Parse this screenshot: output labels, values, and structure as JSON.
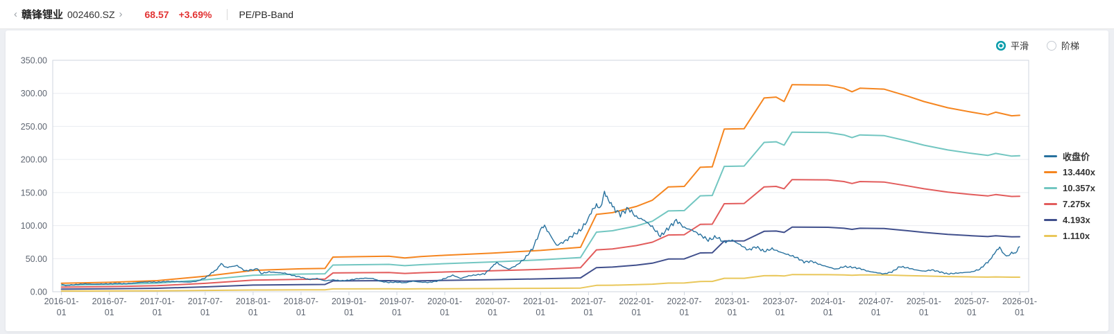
{
  "header": {
    "back_chevron": "‹",
    "stock_name": "赣锋锂业",
    "stock_code": "002460.SZ",
    "forward_chevron": "›",
    "price": "68.57",
    "change_pct": "+3.69%",
    "page_title": "PE/PB-Band"
  },
  "controls": {
    "options": [
      {
        "label": "平滑",
        "selected": true
      },
      {
        "label": "阶梯",
        "selected": false
      }
    ],
    "accent_color": "#0b9dab"
  },
  "colors": {
    "up_red": "#e23333",
    "close_line": "#27719e",
    "band_13": "#f5851f",
    "band_10": "#72c6c1",
    "band_7": "#e25c5c",
    "band_4": "#404f8c",
    "band_1": "#e9c75a",
    "grid": "#e9ecf1",
    "plot_border": "#cfd6df",
    "axis_text": "#5f6672"
  },
  "chart_data": {
    "type": "line",
    "title": "PE/PB-Band",
    "x_axis": {
      "start": "2016-01-01",
      "end": "2026-01-01",
      "tick_labels": [
        "2016-01-01",
        "2016-07-01",
        "2017-01-01",
        "2017-07-01",
        "2018-01-01",
        "2018-07-01",
        "2019-01-01",
        "2019-07-01",
        "2020-01-01",
        "2020-07-01",
        "2021-01-01",
        "2021-07-01",
        "2022-01-01",
        "2022-07-01",
        "2023-01-01",
        "2023-07-01",
        "2024-01-01",
        "2024-07-01",
        "2025-01-01",
        "2025-07-01",
        "2026-01-01"
      ]
    },
    "y_axis": {
      "min": 0,
      "max": 350,
      "step": 50,
      "tick_labels": [
        "350.00",
        "300.00",
        "250.00",
        "200.00",
        "150.00",
        "100.00",
        "50.00",
        "0.00"
      ]
    },
    "legend_position": "right",
    "grid": "horizontal-only",
    "legend_items": [
      {
        "label": "收盘价",
        "color": "#27719e"
      },
      {
        "label": "13.440x",
        "color": "#f5851f"
      },
      {
        "label": "10.357x",
        "color": "#72c6c1"
      },
      {
        "label": "7.275x",
        "color": "#e25c5c"
      },
      {
        "label": "4.193x",
        "color": "#404f8c"
      },
      {
        "label": "1.110x",
        "color": "#e9c75a"
      }
    ],
    "bands": {
      "comment": "band value = multiple x factor; months since 2016-01",
      "multiples": [
        13.44,
        10.357,
        7.275,
        4.193,
        1.11
      ],
      "colors": [
        "#f5851f",
        "#72c6c1",
        "#e25c5c",
        "#404f8c",
        "#e9c75a"
      ],
      "factor_points": [
        [
          0,
          0.95
        ],
        [
          6,
          1.06
        ],
        [
          12,
          1.25
        ],
        [
          18,
          1.75
        ],
        [
          24,
          2.4
        ],
        [
          30,
          2.58
        ],
        [
          33,
          2.62
        ],
        [
          34,
          3.9
        ],
        [
          41,
          4.0
        ],
        [
          43,
          3.8
        ],
        [
          45,
          3.95
        ],
        [
          48,
          4.1
        ],
        [
          54,
          4.35
        ],
        [
          60,
          4.65
        ],
        [
          65,
          5.0
        ],
        [
          67,
          8.7
        ],
        [
          69,
          8.9
        ],
        [
          72,
          9.6
        ],
        [
          74,
          10.3
        ],
        [
          76,
          11.8
        ],
        [
          78,
          11.85
        ],
        [
          80,
          14.0
        ],
        [
          81.5,
          14.05
        ],
        [
          83,
          18.3
        ],
        [
          85.5,
          18.35
        ],
        [
          88,
          21.8
        ],
        [
          89.5,
          21.9
        ],
        [
          90.5,
          21.4
        ],
        [
          91.5,
          23.3
        ],
        [
          96,
          23.25
        ],
        [
          98,
          22.9
        ],
        [
          99,
          22.5
        ],
        [
          100,
          22.9
        ],
        [
          103,
          22.8
        ],
        [
          106,
          22.0
        ],
        [
          108,
          21.4
        ],
        [
          111,
          20.7
        ],
        [
          114,
          20.2
        ],
        [
          116,
          19.9
        ],
        [
          117,
          20.2
        ],
        [
          119,
          19.8
        ],
        [
          120,
          19.85
        ]
      ]
    },
    "close_series": {
      "name": "收盘价",
      "color": "#27719e",
      "points": [
        [
          0,
          11.5
        ],
        [
          0.5,
          9.2
        ],
        [
          1,
          10.0
        ],
        [
          2,
          11.0
        ],
        [
          3,
          12.0
        ],
        [
          4,
          11.4
        ],
        [
          5,
          11.8
        ],
        [
          6,
          12.0
        ],
        [
          7,
          12.6
        ],
        [
          8,
          12.1
        ],
        [
          9,
          13.0
        ],
        [
          10,
          14.4
        ],
        [
          11,
          14.8
        ],
        [
          12,
          14.4
        ],
        [
          13,
          15.4
        ],
        [
          14,
          15.6
        ],
        [
          15,
          15.0
        ],
        [
          16,
          14.6
        ],
        [
          17,
          16.0
        ],
        [
          18,
          21.0
        ],
        [
          19,
          30.0
        ],
        [
          19.5,
          34.0
        ],
        [
          20,
          42.0
        ],
        [
          20.5,
          37.0
        ],
        [
          21,
          37.5
        ],
        [
          22,
          39.5
        ],
        [
          23,
          31.5
        ],
        [
          24,
          33.5
        ],
        [
          24.5,
          36.0
        ],
        [
          25,
          27.5
        ],
        [
          26,
          30.0
        ],
        [
          27,
          29.0
        ],
        [
          28,
          28.0
        ],
        [
          29,
          24.5
        ],
        [
          30,
          22.0
        ],
        [
          31,
          18.5
        ],
        [
          32,
          20.0
        ],
        [
          33,
          16.5
        ],
        [
          34,
          18.0
        ],
        [
          35,
          16.5
        ],
        [
          36,
          17.5
        ],
        [
          37,
          19.5
        ],
        [
          38,
          20.5
        ],
        [
          39,
          20.0
        ],
        [
          40,
          15.5
        ],
        [
          41,
          14.0
        ],
        [
          42,
          14.5
        ],
        [
          43,
          13.5
        ],
        [
          44,
          16.0
        ],
        [
          45,
          14.5
        ],
        [
          46,
          14.0
        ],
        [
          47,
          16.0
        ],
        [
          48,
          20.0
        ],
        [
          49,
          25.0
        ],
        [
          50,
          20.0
        ],
        [
          51,
          24.0
        ],
        [
          52,
          25.5
        ],
        [
          53,
          27.0
        ],
        [
          54,
          38.0
        ],
        [
          54.5,
          43.5
        ],
        [
          55,
          40.0
        ],
        [
          56,
          34.0
        ],
        [
          57,
          40.0
        ],
        [
          58,
          50.0
        ],
        [
          59,
          65.0
        ],
        [
          60,
          93.0
        ],
        [
          60.5,
          99.0
        ],
        [
          61,
          90.0
        ],
        [
          62,
          70.0
        ],
        [
          63,
          76.0
        ],
        [
          64,
          85.0
        ],
        [
          65,
          93.0
        ],
        [
          66,
          110.0
        ],
        [
          66.5,
          124.0
        ],
        [
          67,
          133.0
        ],
        [
          67.5,
          128.0
        ],
        [
          68,
          150.0
        ],
        [
          68.5,
          136.0
        ],
        [
          69,
          128.0
        ],
        [
          70,
          117.0
        ],
        [
          71,
          126.0
        ],
        [
          72,
          113.0
        ],
        [
          73,
          108.0
        ],
        [
          74,
          98.0
        ],
        [
          75,
          84.0
        ],
        [
          76,
          96.0
        ],
        [
          77,
          108.0
        ],
        [
          78,
          97.0
        ],
        [
          79,
          93.0
        ],
        [
          80,
          86.0
        ],
        [
          81,
          78.0
        ],
        [
          82,
          83.0
        ],
        [
          83,
          75.0
        ],
        [
          84,
          78.0
        ],
        [
          85,
          71.0
        ],
        [
          86,
          63.0
        ],
        [
          87,
          68.0
        ],
        [
          88,
          61.0
        ],
        [
          89,
          65.0
        ],
        [
          90,
          60.0
        ],
        [
          91,
          56.0
        ],
        [
          92,
          52.0
        ],
        [
          93,
          45.0
        ],
        [
          94,
          46.0
        ],
        [
          95,
          41.0
        ],
        [
          96,
          37.5
        ],
        [
          97,
          34.0
        ],
        [
          98,
          38.0
        ],
        [
          99,
          37.0
        ],
        [
          100,
          35.0
        ],
        [
          101,
          31.0
        ],
        [
          102,
          29.0
        ],
        [
          103,
          27.0
        ],
        [
          104,
          30.0
        ],
        [
          105,
          38.0
        ],
        [
          106,
          36.0
        ],
        [
          107,
          33.0
        ],
        [
          108,
          31.0
        ],
        [
          109,
          33.0
        ],
        [
          110,
          30.0
        ],
        [
          111,
          27.0
        ],
        [
          112,
          28.0
        ],
        [
          113,
          29.0
        ],
        [
          114,
          30.0
        ],
        [
          115,
          34.0
        ],
        [
          116,
          45.0
        ],
        [
          116.5,
          52.0
        ],
        [
          117,
          60.0
        ],
        [
          117.5,
          66.0
        ],
        [
          118,
          57.0
        ],
        [
          118.5,
          54.5
        ],
        [
          119,
          60.0
        ],
        [
          119.5,
          58.0
        ],
        [
          120,
          68.57
        ]
      ]
    },
    "close_noise": {
      "amplitude_pct": 0.035,
      "min_amplitude": 0.6,
      "subdiv_per_month": 5
    }
  }
}
